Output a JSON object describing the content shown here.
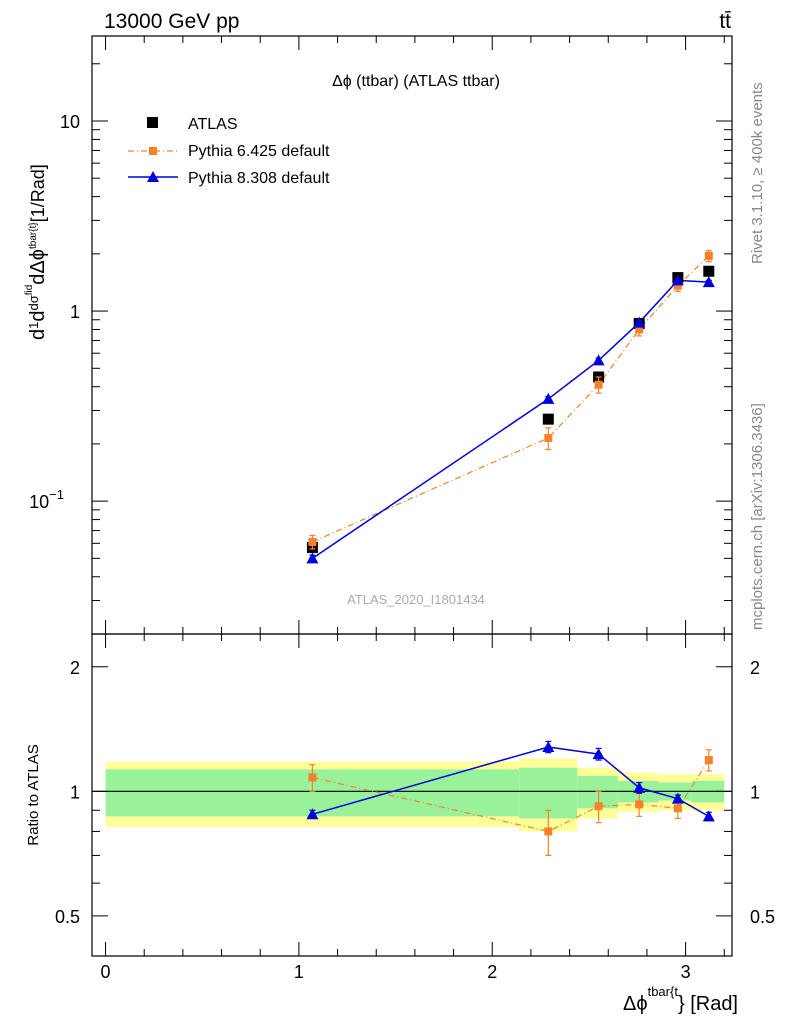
{
  "header": {
    "energy_label": "13000 GeV pp",
    "process_label": "tt̄"
  },
  "side_labels": {
    "rivet": "Rivet 3.1.10, ≥ 400k events",
    "mcplots": "mcplots.cern.ch [arXiv:1306.3436]"
  },
  "chart_data": {
    "type": "line",
    "title": "Δϕ (ttbar) (ATLAS ttbar)",
    "analysis_id": "ATLAS_2020_I1801434",
    "xlabel_main": "Δϕ",
    "xlabel_sup": "tbar{t",
    "xlabel_tail": "} [Rad]",
    "ylabel": "d(1/σ) dσ^(fid) / dΔϕ^(tbar{t}) [1/Rad]",
    "ylabel_unit": "[1/Rad]",
    "ratio_ylabel": "Ratio to ATLAS",
    "xlim": [
      -0.07,
      3.24
    ],
    "ylim_main": [
      0.02,
      28
    ],
    "ylim_ratio": [
      0.4,
      2.4
    ],
    "x_ticks": [
      "0",
      "1",
      "2",
      "3"
    ],
    "y_ticks_main": [
      {
        "value": 10,
        "base": "10",
        "exp": ""
      },
      {
        "value": 1,
        "base": "1",
        "exp": ""
      },
      {
        "value": 0.1,
        "base": "10",
        "exp": "−1"
      }
    ],
    "y_ticks_ratio": [
      "2",
      "1",
      "0.5"
    ],
    "bins": [
      {
        "lo": 0.0,
        "hi": 2.14
      },
      {
        "lo": 2.14,
        "hi": 2.44
      },
      {
        "lo": 2.44,
        "hi": 2.65
      },
      {
        "lo": 2.65,
        "hi": 2.86
      },
      {
        "lo": 2.86,
        "hi": 3.03
      },
      {
        "lo": 3.03,
        "hi": 3.2
      }
    ],
    "band_stat": [
      0.13,
      0.14,
      0.09,
      0.06,
      0.05,
      0.06
    ],
    "band_total": [
      0.18,
      0.2,
      0.14,
      0.11,
      0.1,
      0.1
    ],
    "series": [
      {
        "name": "ATLAS",
        "color": "#000000",
        "marker": "square",
        "x": [
          1.07,
          2.29,
          2.55,
          2.76,
          2.96,
          3.12
        ],
        "y": [
          0.057,
          0.27,
          0.45,
          0.86,
          1.5,
          1.62
        ]
      },
      {
        "name": "Pythia 6.425 default",
        "color": "#f5812b",
        "marker": "square-small",
        "line": "dashdot",
        "x": [
          1.07,
          2.29,
          2.55,
          2.76,
          2.96,
          3.12
        ],
        "y": [
          0.061,
          0.215,
          0.41,
          0.8,
          1.36,
          1.95
        ],
        "yerr": [
          0.005,
          0.028,
          0.04,
          0.06,
          0.09,
          0.13
        ],
        "ratio": [
          1.08,
          0.8,
          0.92,
          0.93,
          0.91,
          1.19
        ],
        "ratio_err": [
          0.08,
          0.1,
          0.08,
          0.06,
          0.05,
          0.07
        ]
      },
      {
        "name": "Pythia 8.308 default",
        "color": "#0000dd",
        "marker": "triangle",
        "line": "solid",
        "x": [
          1.07,
          2.29,
          2.55,
          2.76,
          2.96,
          3.12
        ],
        "y": [
          0.05,
          0.345,
          0.55,
          0.87,
          1.45,
          1.42
        ],
        "yerr": [
          0.002,
          0.01,
          0.015,
          0.02,
          0.03,
          0.03
        ],
        "ratio": [
          0.88,
          1.28,
          1.23,
          1.02,
          0.96,
          0.87
        ],
        "ratio_err": [
          0.02,
          0.04,
          0.04,
          0.03,
          0.02,
          0.02
        ]
      }
    ]
  }
}
